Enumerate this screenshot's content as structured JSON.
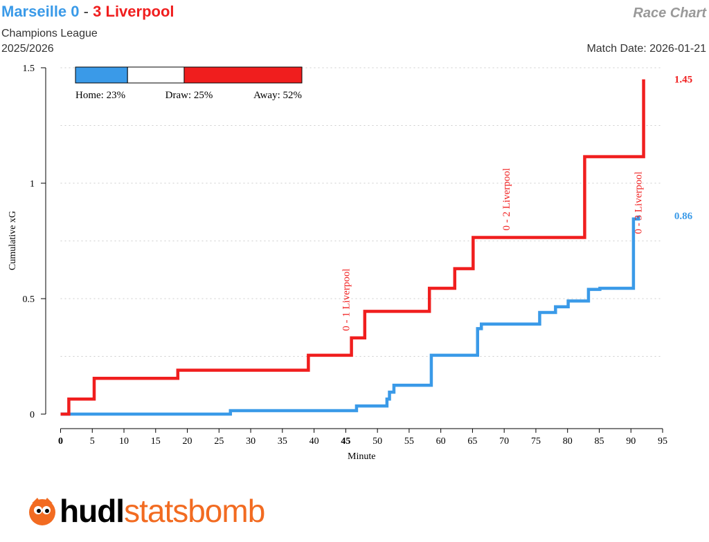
{
  "header": {
    "home_team": "Marseille",
    "home_score": "0",
    "separator": "-",
    "away_score": "3",
    "away_team": "Liverpool",
    "competition": "Champions League",
    "season": "2025/2026",
    "chart_label": "Race Chart",
    "match_date": "Match Date: 2026-01-21"
  },
  "colors": {
    "home": "#3a9ae8",
    "away": "#f01e1e",
    "grid": "#cccccc"
  },
  "logo": {
    "word1": "hudl",
    "word2": "statsbomb",
    "icon": "statsbomb-logo-icon"
  },
  "chart_data": {
    "type": "line",
    "step": true,
    "xlabel": "Minute",
    "ylabel": "Cumulative xG",
    "xlim": [
      0,
      95
    ],
    "ylim": [
      0,
      1.5
    ],
    "xticks": [
      0,
      5,
      10,
      15,
      20,
      25,
      30,
      35,
      40,
      45,
      50,
      55,
      60,
      65,
      70,
      75,
      80,
      85,
      90,
      95
    ],
    "yticks": [
      0,
      0.5,
      1,
      1.5
    ],
    "ytick_labels": [
      "0",
      "0.5",
      "1",
      "1.5"
    ],
    "bold_xticks": [
      0,
      45
    ],
    "grid": "horizontal dotted",
    "series": [
      {
        "name": "Marseille",
        "side": "home",
        "final_label": "0.86",
        "points": [
          [
            0,
            0
          ],
          [
            26.8,
            0.015
          ],
          [
            46.7,
            0.035
          ],
          [
            51.5,
            0.065
          ],
          [
            51.9,
            0.095
          ],
          [
            52.6,
            0.125
          ],
          [
            58.5,
            0.255
          ],
          [
            65.8,
            0.37
          ],
          [
            66.4,
            0.39
          ],
          [
            75.6,
            0.44
          ],
          [
            78.1,
            0.465
          ],
          [
            80.1,
            0.49
          ],
          [
            83.3,
            0.54
          ],
          [
            85.1,
            0.545
          ],
          [
            90.4,
            0.845
          ],
          [
            91.2,
            0.86
          ]
        ],
        "end_x": 91.2
      },
      {
        "name": "Liverpool",
        "side": "away",
        "final_label": "1.45",
        "points": [
          [
            0,
            0
          ],
          [
            1.3,
            0.065
          ],
          [
            5.3,
            0.155
          ],
          [
            18.5,
            0.19
          ],
          [
            39.1,
            0.255
          ],
          [
            45.9,
            0.33
          ],
          [
            48.0,
            0.445
          ],
          [
            58.2,
            0.545
          ],
          [
            62.2,
            0.63
          ],
          [
            65.1,
            0.765
          ],
          [
            82.7,
            1.115
          ],
          [
            92.0,
            1.45
          ]
        ],
        "end_x": 92.0
      }
    ],
    "annotations": [
      {
        "text": "0 - 1 Liverpool",
        "x": 45.9,
        "y": 0.33,
        "side": "away"
      },
      {
        "text": "0 - 2 Liverpool",
        "x": 71.2,
        "y": 0.765,
        "side": "away"
      },
      {
        "text": "0 - 3 Liverpool",
        "x": 92.0,
        "y": 0.75,
        "side": "away"
      }
    ],
    "probability_bar": {
      "home": 23,
      "draw": 25,
      "away": 52,
      "home_label": "Home: 23%",
      "draw_label": "Draw: 25%",
      "away_label": "Away: 52%"
    }
  }
}
